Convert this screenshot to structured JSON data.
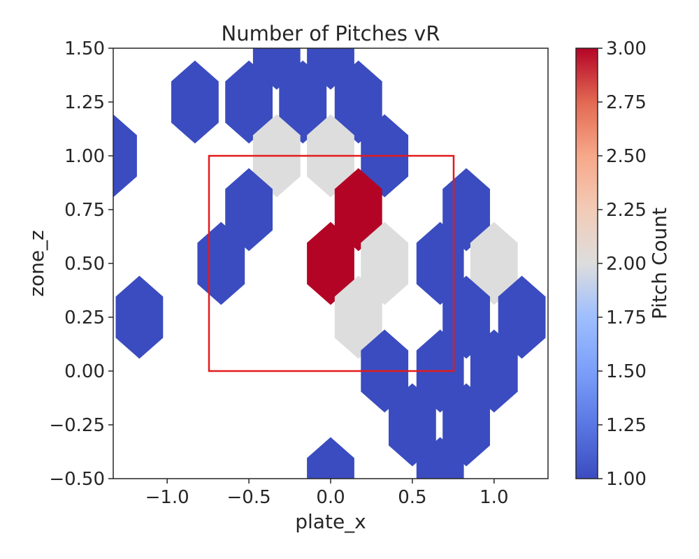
{
  "chart_data": {
    "type": "heatmap",
    "subtype": "hexbin",
    "title": "Number of Pitches vR",
    "xlabel": "plate_x",
    "ylabel": "zone_z",
    "xlim": [
      -1.33,
      1.33
    ],
    "ylim": [
      -0.5,
      1.5
    ],
    "x_ticks": [
      -1.0,
      -0.5,
      0.0,
      0.5,
      1.0
    ],
    "x_tick_labels": [
      "−1.0",
      "−0.5",
      "0.0",
      "0.5",
      "1.0"
    ],
    "y_ticks": [
      -0.5,
      -0.25,
      0.0,
      0.25,
      0.5,
      0.75,
      1.0,
      1.25,
      1.5
    ],
    "y_tick_labels": [
      "−0.50",
      "−0.25",
      "0.00",
      "0.25",
      "0.50",
      "0.75",
      "1.00",
      "1.25",
      "1.50"
    ],
    "colorbar": {
      "label": "Pitch Count",
      "colormap": "coolwarm",
      "min": 1.0,
      "max": 3.0,
      "ticks": [
        1.0,
        1.25,
        1.5,
        1.75,
        2.0,
        2.25,
        2.5,
        2.75,
        3.0
      ],
      "tick_labels": [
        "1.00",
        "1.25",
        "1.50",
        "1.75",
        "2.00",
        "2.25",
        "2.50",
        "2.75",
        "3.00"
      ]
    },
    "strike_zone": {
      "x": [
        -0.75,
        0.75
      ],
      "z": [
        0.0,
        1.0
      ],
      "color": "#e31a1c"
    },
    "hex_radius": 0.165,
    "colors": {
      "low": "#3b4cc0",
      "mid": "#dddddd",
      "high": "#b40426"
    },
    "hexes": [
      {
        "x": -1.17,
        "z": 0.25,
        "count": 1
      },
      {
        "x": -1.33,
        "z": 1.0,
        "count": 1
      },
      {
        "x": -0.83,
        "z": 1.25,
        "count": 1
      },
      {
        "x": -0.5,
        "z": 1.25,
        "count": 1
      },
      {
        "x": -0.17,
        "z": 1.25,
        "count": 1
      },
      {
        "x": 0.17,
        "z": 1.25,
        "count": 1
      },
      {
        "x": -0.33,
        "z": 1.5,
        "count": 1
      },
      {
        "x": 0.0,
        "z": 1.5,
        "count": 1
      },
      {
        "x": -0.33,
        "z": 1.0,
        "count": 2
      },
      {
        "x": 0.0,
        "z": 1.0,
        "count": 2
      },
      {
        "x": 0.33,
        "z": 1.0,
        "count": 1
      },
      {
        "x": -0.5,
        "z": 0.75,
        "count": 1
      },
      {
        "x": 0.17,
        "z": 0.75,
        "count": 3
      },
      {
        "x": 0.83,
        "z": 0.75,
        "count": 1
      },
      {
        "x": -0.67,
        "z": 0.5,
        "count": 1
      },
      {
        "x": 0.0,
        "z": 0.5,
        "count": 3
      },
      {
        "x": 0.33,
        "z": 0.5,
        "count": 2
      },
      {
        "x": 0.67,
        "z": 0.5,
        "count": 1
      },
      {
        "x": 1.0,
        "z": 0.5,
        "count": 2
      },
      {
        "x": 0.17,
        "z": 0.25,
        "count": 2
      },
      {
        "x": 0.83,
        "z": 0.25,
        "count": 1
      },
      {
        "x": 1.17,
        "z": 0.25,
        "count": 1
      },
      {
        "x": 0.33,
        "z": 0.0,
        "count": 1
      },
      {
        "x": 0.67,
        "z": 0.0,
        "count": 1
      },
      {
        "x": 1.0,
        "z": 0.0,
        "count": 1
      },
      {
        "x": 0.5,
        "z": -0.25,
        "count": 1
      },
      {
        "x": 0.83,
        "z": -0.25,
        "count": 1
      },
      {
        "x": 0.0,
        "z": -0.5,
        "count": 1
      },
      {
        "x": 0.67,
        "z": -0.5,
        "count": 1
      }
    ]
  }
}
